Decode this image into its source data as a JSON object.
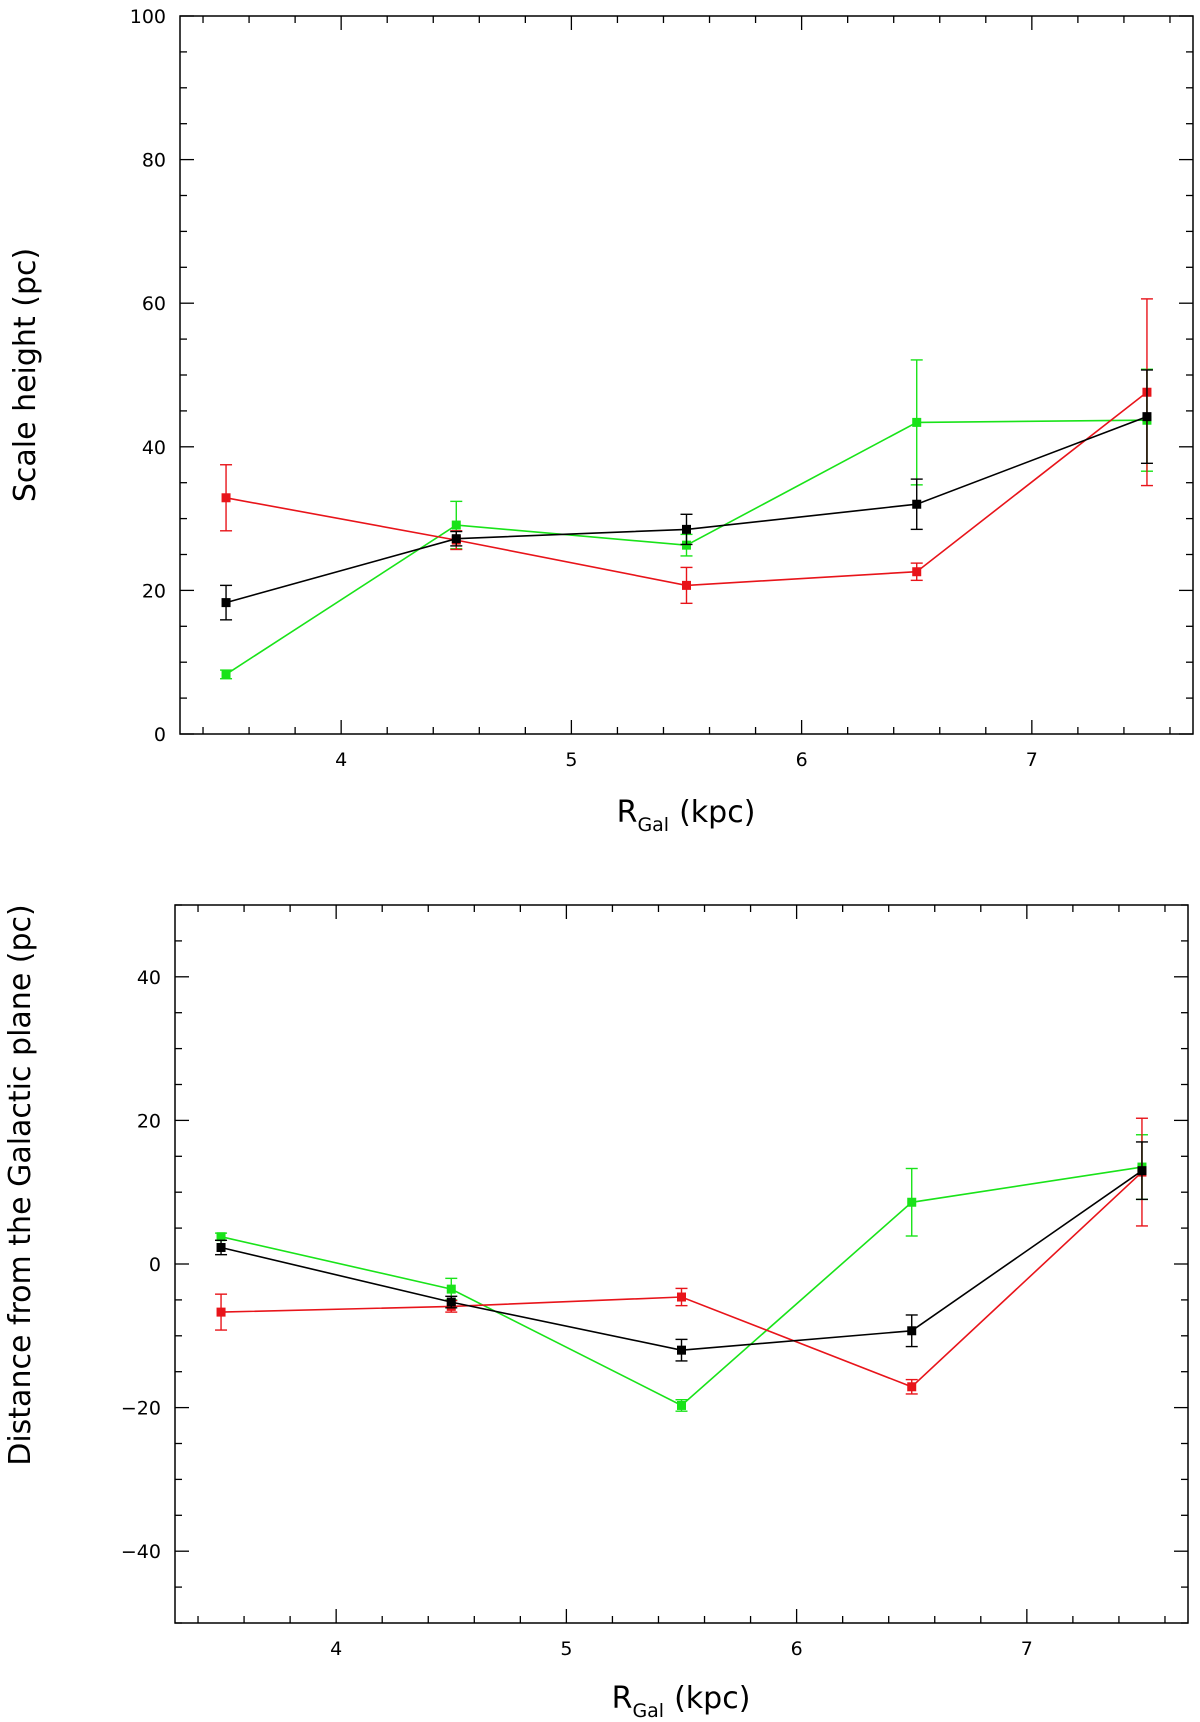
{
  "chart_data": [
    {
      "type": "line",
      "xlabel": "R",
      "xlabel_sub": "Gal",
      "xlabel_unit": "(kpc)",
      "ylabel": "Scale height (pc)",
      "xlim": [
        3.3,
        7.7
      ],
      "ylim": [
        0,
        100
      ],
      "xticks": [
        4,
        5,
        6,
        7
      ],
      "yticks": [
        0,
        20,
        40,
        60,
        80,
        100
      ],
      "xticks_minor": 0.2,
      "yticks_minor": 5,
      "x": [
        3.5,
        4.5,
        5.5,
        6.5,
        7.5
      ],
      "series": [
        {
          "name": "black",
          "color": "#000000",
          "values": [
            18.3,
            27.2,
            28.5,
            32.0,
            44.2
          ],
          "errors": [
            2.4,
            1.0,
            2.1,
            3.5,
            6.5
          ]
        },
        {
          "name": "red",
          "color": "#e8141a",
          "values": [
            32.9,
            27.0,
            20.7,
            22.6,
            47.6
          ],
          "errors": [
            4.6,
            1.3,
            2.5,
            1.2,
            13.0
          ]
        },
        {
          "name": "green",
          "color": "#19e319",
          "values": [
            8.3,
            29.1,
            26.3,
            43.4,
            43.7
          ],
          "errors": [
            0.6,
            3.3,
            1.5,
            8.7,
            7.1
          ]
        }
      ]
    },
    {
      "type": "line",
      "xlabel": "R",
      "xlabel_sub": "Gal",
      "xlabel_unit": "(kpc)",
      "ylabel": "Distance from the Galactic plane (pc)",
      "xlim": [
        3.3,
        7.7
      ],
      "ylim": [
        -50,
        50
      ],
      "xticks": [
        4,
        5,
        6,
        7
      ],
      "yticks": [
        -40,
        -20,
        0,
        20,
        40
      ],
      "xticks_minor": 0.2,
      "yticks_minor": 5,
      "x": [
        3.5,
        4.5,
        5.5,
        6.5,
        7.5
      ],
      "series": [
        {
          "name": "black",
          "color": "#000000",
          "values": [
            2.3,
            -5.3,
            -12.0,
            -9.3,
            13.0
          ],
          "errors": [
            1.0,
            0.8,
            1.5,
            2.2,
            4.0
          ]
        },
        {
          "name": "red",
          "color": "#e8141a",
          "values": [
            -6.7,
            -5.9,
            -4.6,
            -17.1,
            12.8
          ],
          "errors": [
            2.5,
            0.8,
            1.2,
            1.0,
            7.5
          ]
        },
        {
          "name": "green",
          "color": "#19e319",
          "values": [
            3.8,
            -3.5,
            -19.7,
            8.6,
            13.5
          ],
          "errors": [
            0.5,
            1.5,
            0.8,
            4.7,
            4.5
          ]
        }
      ]
    }
  ]
}
